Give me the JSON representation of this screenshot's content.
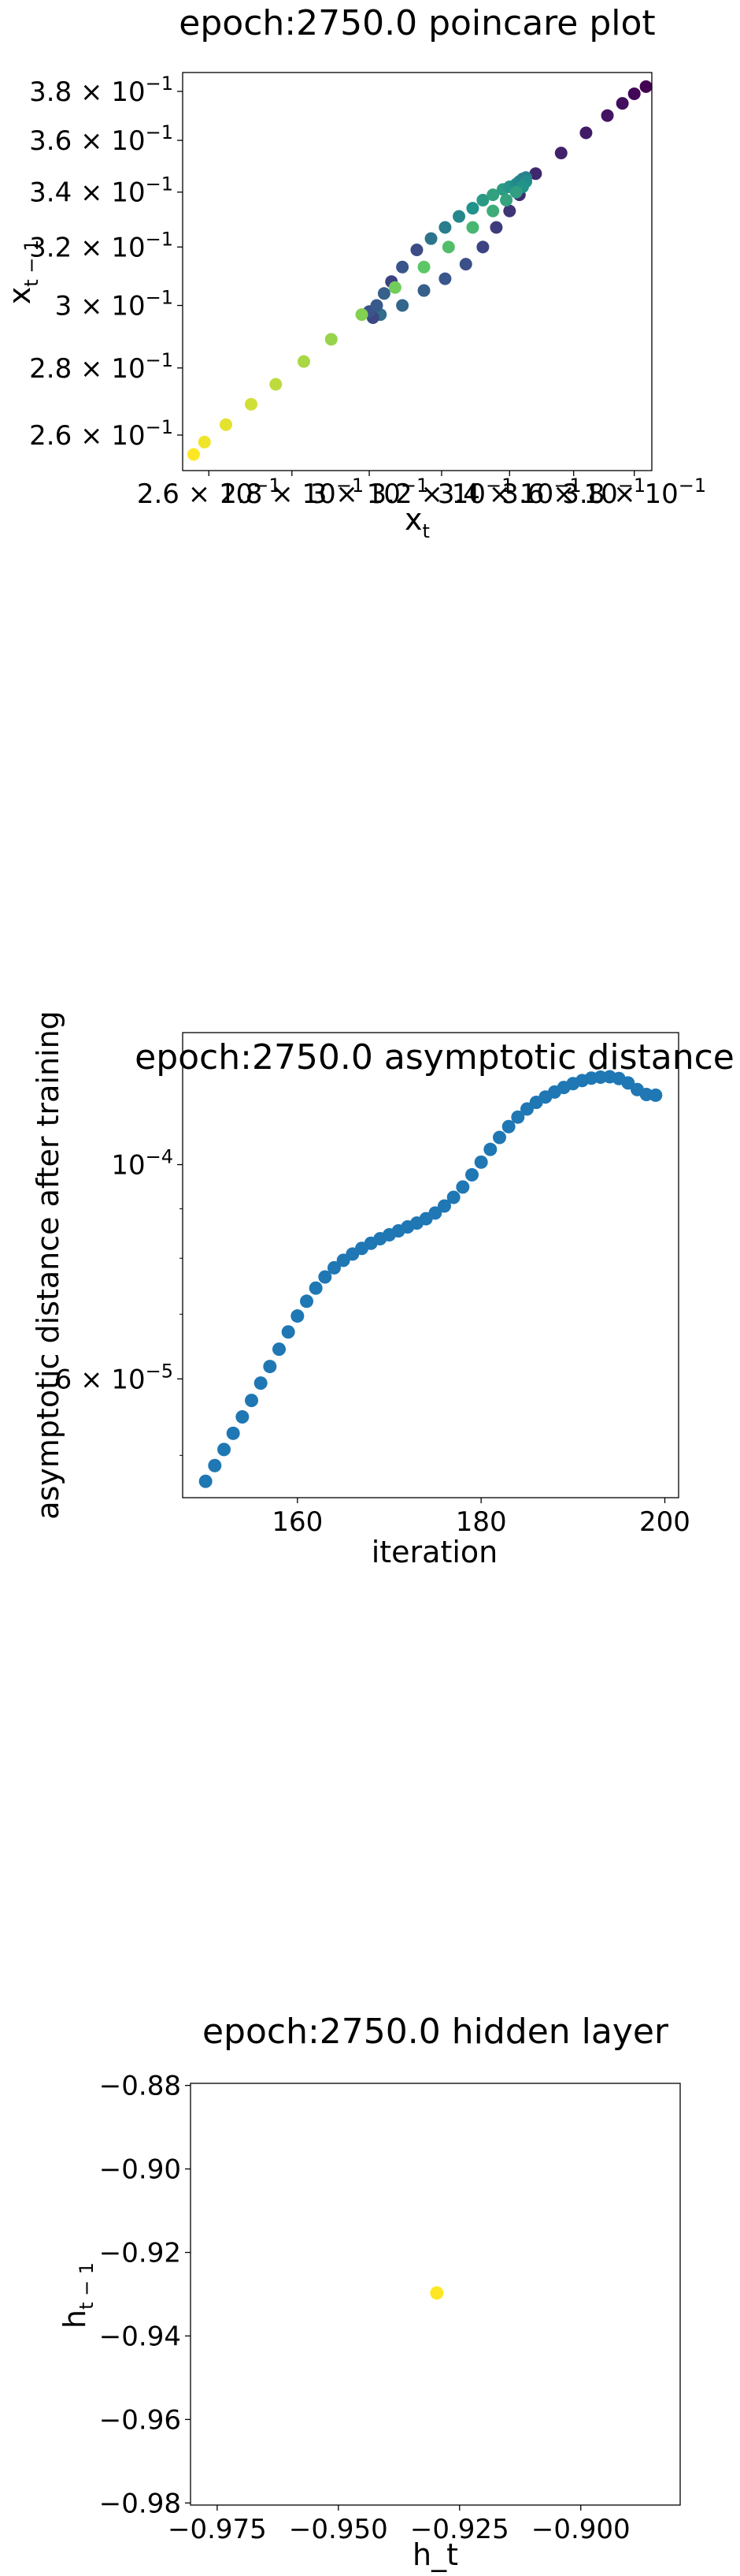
{
  "chart_data": [
    {
      "type": "scatter",
      "title": "epoch:2750.0 poincare plot",
      "xlabel": "x_t",
      "ylabel": "x_{t-1}",
      "xscale": "log",
      "yscale": "log",
      "xlim": [
        0.254,
        0.386
      ],
      "ylim": [
        0.25,
        0.388
      ],
      "xticks": [
        {
          "value": 0.26,
          "mant": "2.6",
          "exp": "−1"
        },
        {
          "value": 0.28,
          "mant": "2.8",
          "exp": "−1"
        },
        {
          "value": 0.3,
          "mant": "3",
          "exp": "−1"
        },
        {
          "value": 0.32,
          "mant": "3.2",
          "exp": "−1"
        },
        {
          "value": 0.34,
          "mant": "3.4",
          "exp": "−1"
        },
        {
          "value": 0.36,
          "mant": "3.6",
          "exp": "−1"
        },
        {
          "value": 0.38,
          "mant": "3.8",
          "exp": "−1"
        }
      ],
      "yticks": [
        {
          "value": 0.26,
          "mant": "2.6",
          "exp": "−1"
        },
        {
          "value": 0.28,
          "mant": "2.8",
          "exp": "−1"
        },
        {
          "value": 0.3,
          "mant": "3",
          "exp": "−1"
        },
        {
          "value": 0.32,
          "mant": "3.2",
          "exp": "−1"
        },
        {
          "value": 0.34,
          "mant": "3.4",
          "exp": "−1"
        },
        {
          "value": 0.36,
          "mant": "3.6",
          "exp": "−1"
        },
        {
          "value": 0.38,
          "mant": "3.8",
          "exp": "−1"
        }
      ],
      "colormap": [
        "#440154",
        "#3b528b",
        "#21918c",
        "#5ec962",
        "#fde725"
      ],
      "points": [
        {
          "x": 0.384,
          "y": 0.382,
          "c": 0.0
        },
        {
          "x": 0.38,
          "y": 0.379,
          "c": 0.02
        },
        {
          "x": 0.376,
          "y": 0.375,
          "c": 0.04
        },
        {
          "x": 0.371,
          "y": 0.37,
          "c": 0.06
        },
        {
          "x": 0.364,
          "y": 0.363,
          "c": 0.08
        },
        {
          "x": 0.356,
          "y": 0.355,
          "c": 0.1
        },
        {
          "x": 0.348,
          "y": 0.347,
          "c": 0.12
        },
        {
          "x": 0.343,
          "y": 0.339,
          "c": 0.14
        },
        {
          "x": 0.34,
          "y": 0.333,
          "c": 0.16
        },
        {
          "x": 0.336,
          "y": 0.327,
          "c": 0.18
        },
        {
          "x": 0.332,
          "y": 0.32,
          "c": 0.21
        },
        {
          "x": 0.327,
          "y": 0.314,
          "c": 0.24
        },
        {
          "x": 0.321,
          "y": 0.309,
          "c": 0.27
        },
        {
          "x": 0.315,
          "y": 0.305,
          "c": 0.3
        },
        {
          "x": 0.309,
          "y": 0.3,
          "c": 0.33
        },
        {
          "x": 0.303,
          "y": 0.297,
          "c": 0.36
        },
        {
          "x": 0.301,
          "y": 0.296,
          "c": 0.22
        },
        {
          "x": 0.3,
          "y": 0.298,
          "c": 0.25
        },
        {
          "x": 0.302,
          "y": 0.3,
          "c": 0.28
        },
        {
          "x": 0.304,
          "y": 0.304,
          "c": 0.31
        },
        {
          "x": 0.306,
          "y": 0.308,
          "c": 0.2
        },
        {
          "x": 0.309,
          "y": 0.313,
          "c": 0.26
        },
        {
          "x": 0.313,
          "y": 0.319,
          "c": 0.23
        },
        {
          "x": 0.317,
          "y": 0.323,
          "c": 0.38
        },
        {
          "x": 0.321,
          "y": 0.327,
          "c": 0.42
        },
        {
          "x": 0.325,
          "y": 0.331,
          "c": 0.46
        },
        {
          "x": 0.329,
          "y": 0.334,
          "c": 0.5
        },
        {
          "x": 0.332,
          "y": 0.337,
          "c": 0.54
        },
        {
          "x": 0.335,
          "y": 0.339,
          "c": 0.57
        },
        {
          "x": 0.338,
          "y": 0.341,
          "c": 0.55
        },
        {
          "x": 0.34,
          "y": 0.342,
          "c": 0.52
        },
        {
          "x": 0.342,
          "y": 0.343,
          "c": 0.49
        },
        {
          "x": 0.343,
          "y": 0.344,
          "c": 0.47
        },
        {
          "x": 0.344,
          "y": 0.345,
          "c": 0.45
        },
        {
          "x": 0.345,
          "y": 0.3455,
          "c": 0.44
        },
        {
          "x": 0.345,
          "y": 0.344,
          "c": 0.48
        },
        {
          "x": 0.344,
          "y": 0.342,
          "c": 0.51
        },
        {
          "x": 0.342,
          "y": 0.34,
          "c": 0.56
        },
        {
          "x": 0.339,
          "y": 0.337,
          "c": 0.58
        },
        {
          "x": 0.335,
          "y": 0.333,
          "c": 0.62
        },
        {
          "x": 0.329,
          "y": 0.327,
          "c": 0.66
        },
        {
          "x": 0.322,
          "y": 0.32,
          "c": 0.7
        },
        {
          "x": 0.315,
          "y": 0.313,
          "c": 0.74
        },
        {
          "x": 0.307,
          "y": 0.306,
          "c": 0.78
        },
        {
          "x": 0.298,
          "y": 0.297,
          "c": 0.81
        },
        {
          "x": 0.29,
          "y": 0.289,
          "c": 0.84
        },
        {
          "x": 0.283,
          "y": 0.282,
          "c": 0.87
        },
        {
          "x": 0.276,
          "y": 0.275,
          "c": 0.9
        },
        {
          "x": 0.27,
          "y": 0.269,
          "c": 0.93
        },
        {
          "x": 0.264,
          "y": 0.263,
          "c": 0.96
        },
        {
          "x": 0.259,
          "y": 0.258,
          "c": 0.98
        },
        {
          "x": 0.2565,
          "y": 0.2545,
          "c": 1.0
        }
      ]
    },
    {
      "type": "scatter",
      "title": "epoch:2750.0 asymptotic distance",
      "xlabel": "iteration",
      "ylabel": "asymptotic distance after training",
      "yscale": "log",
      "xlim": [
        147.5,
        201.5
      ],
      "ylim": [
        4.52e-05,
        0.000137
      ],
      "xticks": [
        160,
        180,
        200
      ],
      "yticks": [
        {
          "value": 0.0001,
          "mant": "10",
          "exp": "−4"
        },
        {
          "value": 6e-05,
          "mant": "6 × 10",
          "exp": "−5"
        }
      ],
      "color": "#1f77b4",
      "x": [
        150,
        151,
        152,
        153,
        154,
        155,
        156,
        157,
        158,
        159,
        160,
        161,
        162,
        163,
        164,
        165,
        166,
        167,
        168,
        169,
        170,
        171,
        172,
        173,
        174,
        175,
        176,
        177,
        178,
        179,
        180,
        181,
        182,
        183,
        184,
        185,
        186,
        187,
        188,
        189,
        190,
        191,
        192,
        193,
        194,
        195,
        196,
        197,
        198,
        199
      ],
      "y": [
        4.7e-05,
        4.88e-05,
        5.07e-05,
        5.27e-05,
        5.48e-05,
        5.7e-05,
        5.94e-05,
        6.18e-05,
        6.44e-05,
        6.71e-05,
        6.97e-05,
        7.22e-05,
        7.45e-05,
        7.65e-05,
        7.82e-05,
        7.96e-05,
        8.08e-05,
        8.19e-05,
        8.29e-05,
        8.38e-05,
        8.46e-05,
        8.54e-05,
        8.62e-05,
        8.7e-05,
        8.79e-05,
        8.91e-05,
        9.06e-05,
        9.25e-05,
        9.48e-05,
        9.76e-05,
        0.0001006,
        0.0001037,
        0.0001067,
        0.0001095,
        0.000112,
        0.0001142,
        0.000116,
        0.0001175,
        0.0001189,
        0.0001202,
        0.0001213,
        0.0001222,
        0.0001229,
        0.0001232,
        0.0001233,
        0.0001228,
        0.0001215,
        0.0001196,
        0.0001182,
        0.000118
      ]
    },
    {
      "type": "scatter",
      "title": "epoch:2750.0 hidden layer",
      "xlabel": "h_t",
      "ylabel": "h_{t-1}",
      "xlim": [
        -0.9805,
        -0.8795
      ],
      "ylim": [
        -0.9805,
        -0.8795
      ],
      "xticks": [
        {
          "value": -0.975,
          "label": "−0.975"
        },
        {
          "value": -0.95,
          "label": "−0.950"
        },
        {
          "value": -0.925,
          "label": "−0.925"
        },
        {
          "value": -0.9,
          "label": "−0.900"
        }
      ],
      "yticks": [
        {
          "value": -0.88,
          "label": "−0.88"
        },
        {
          "value": -0.9,
          "label": "−0.90"
        },
        {
          "value": -0.92,
          "label": "−0.92"
        },
        {
          "value": -0.94,
          "label": "−0.94"
        },
        {
          "value": -0.96,
          "label": "−0.96"
        },
        {
          "value": -0.98,
          "label": "−0.98"
        }
      ],
      "color": "#fde725",
      "points": [
        {
          "x": -0.9297,
          "y": -0.9297
        }
      ]
    }
  ]
}
